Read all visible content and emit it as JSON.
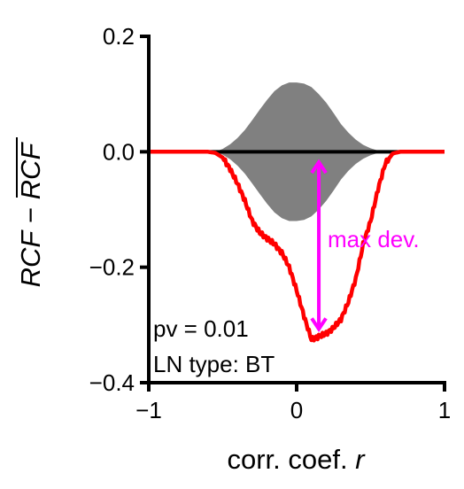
{
  "chart_data": {
    "type": "line",
    "title": "",
    "xlabel": "corr. coef. r",
    "ylabel": "RCF − RCF̄",
    "xlim": [
      -1,
      1
    ],
    "ylim": [
      -0.4,
      0.2
    ],
    "x_ticks": [
      -1,
      0,
      1
    ],
    "x_tick_labels": [
      "−1",
      "0",
      "1"
    ],
    "y_ticks": [
      0.2,
      0.0,
      -0.2,
      -0.4
    ],
    "y_tick_labels": [
      "0.2",
      "0.0",
      "−0.2",
      "−0.4"
    ],
    "grid": false,
    "legend": "none",
    "series": [
      {
        "kind": "band",
        "color": "#808080",
        "x": [
          -0.7,
          -0.55,
          -0.5,
          -0.45,
          -0.4,
          -0.35,
          -0.3,
          -0.25,
          -0.2,
          -0.15,
          -0.1,
          -0.05,
          0.0,
          0.05,
          0.1,
          0.15,
          0.2,
          0.25,
          0.3,
          0.35,
          0.4,
          0.45,
          0.5,
          0.55,
          0.6,
          0.65,
          0.7,
          0.8
        ],
        "upper": [
          0,
          0,
          0.005,
          0.013,
          0.024,
          0.038,
          0.055,
          0.073,
          0.09,
          0.105,
          0.115,
          0.12,
          0.12,
          0.118,
          0.112,
          0.1,
          0.085,
          0.067,
          0.048,
          0.033,
          0.021,
          0.012,
          0.006,
          0.002,
          0,
          0,
          0,
          0
        ],
        "lower": [
          0,
          0,
          -0.005,
          -0.013,
          -0.024,
          -0.038,
          -0.055,
          -0.073,
          -0.09,
          -0.105,
          -0.115,
          -0.12,
          -0.12,
          -0.118,
          -0.112,
          -0.1,
          -0.085,
          -0.067,
          -0.048,
          -0.033,
          -0.021,
          -0.012,
          -0.006,
          -0.002,
          0,
          0,
          0,
          0
        ]
      },
      {
        "kind": "line",
        "color": "#000000",
        "x": [
          -0.7,
          0.8
        ],
        "y": [
          0,
          0
        ]
      },
      {
        "kind": "line",
        "color": "#ff0000",
        "x": [
          -1.0,
          -0.6,
          -0.55,
          -0.5,
          -0.45,
          -0.4,
          -0.35,
          -0.3,
          -0.25,
          -0.2,
          -0.15,
          -0.1,
          -0.05,
          0.0,
          0.05,
          0.1,
          0.15,
          0.2,
          0.25,
          0.3,
          0.35,
          0.4,
          0.45,
          0.5,
          0.55,
          0.6,
          0.65,
          0.7,
          0.75,
          1.0
        ],
        "y": [
          0,
          0,
          -0.002,
          -0.01,
          -0.03,
          -0.055,
          -0.085,
          -0.12,
          -0.14,
          -0.15,
          -0.16,
          -0.175,
          -0.2,
          -0.24,
          -0.285,
          -0.325,
          -0.32,
          -0.315,
          -0.305,
          -0.29,
          -0.26,
          -0.22,
          -0.16,
          -0.12,
          -0.065,
          -0.02,
          -0.003,
          0,
          0,
          0
        ]
      }
    ],
    "annotations": {
      "max_dev": {
        "text": "max dev.",
        "color": "#ff00ff",
        "arrow_x": 0.15,
        "arrow_y_from": -0.015,
        "arrow_y_to": -0.31
      },
      "pv": "pv = 0.01",
      "ln_type": "LN type: BT"
    }
  }
}
